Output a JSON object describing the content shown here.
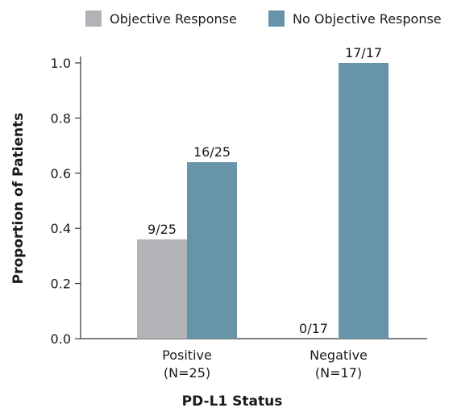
{
  "chart_data": {
    "type": "bar",
    "xlabel": "PD-L1 Status",
    "ylabel": "Proportion of Patients",
    "ylim": [
      0,
      1.0
    ],
    "yticks": [
      "0.0",
      "0.2",
      "0.4",
      "0.6",
      "0.8",
      "1.0"
    ],
    "grid": false,
    "legend_position": "top",
    "categories": [
      {
        "name": "Positive",
        "sub": "(N=25)"
      },
      {
        "name": "Negative",
        "sub": "(N=17)"
      }
    ],
    "series": [
      {
        "name": "Objective Response",
        "color": "#b1b3b6",
        "values": [
          0.36,
          0.0
        ],
        "labels": [
          "9/25",
          "0/17"
        ]
      },
      {
        "name": "No Objective Response",
        "color": "#6894a9",
        "values": [
          0.64,
          1.0
        ],
        "labels": [
          "16/25",
          "17/17"
        ]
      }
    ]
  }
}
